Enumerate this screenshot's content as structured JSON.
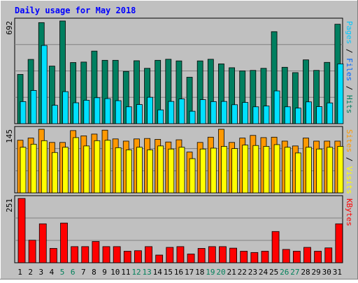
{
  "chart_data": {
    "title": "Daily usage for May 2018",
    "categories": [
      "1",
      "2",
      "3",
      "4",
      "5",
      "6",
      "7",
      "8",
      "9",
      "10",
      "11",
      "12",
      "13",
      "14",
      "15",
      "16",
      "17",
      "18",
      "19",
      "20",
      "21",
      "22",
      "23",
      "24",
      "25",
      "26",
      "27",
      "28",
      "29",
      "30",
      "31"
    ],
    "weekend_days": [
      "5",
      "6",
      "12",
      "13",
      "19",
      "20",
      "26",
      "27"
    ],
    "panels": [
      {
        "id": "hits-files-pages",
        "type": "bar",
        "max_label": "692",
        "ylim": [
          0,
          692
        ],
        "side_label": [
          "Pages",
          " / ",
          "Files",
          " / ",
          "Hits"
        ],
        "series": [
          {
            "key": "hits",
            "color": "#007f60",
            "values": [
              332,
              433,
              681,
              388,
              692,
              412,
              415,
              489,
              427,
              427,
              352,
              424,
              373,
              427,
              434,
              423,
              313,
              423,
              434,
              403,
              377,
              356,
              359,
              373,
              620,
              380,
              344,
              430,
              359,
              413,
              670
            ]
          },
          {
            "key": "pages",
            "color": "#00e0ff",
            "values": [
              149,
              224,
              527,
              124,
              216,
              141,
              158,
              175,
              169,
              155,
              114,
              129,
              178,
              93,
              150,
              167,
              84,
              162,
              149,
              150,
              128,
              143,
              114,
              119,
              221,
              114,
              105,
              147,
              115,
              140,
              403
            ]
          },
          {
            "key": "files",
            "color": "#00c8ff",
            "values": [
              0,
              0,
              0,
              0,
              0,
              0,
              0,
              0,
              0,
              0,
              0,
              0,
              0,
              0,
              0,
              0,
              0,
              0,
              0,
              0,
              0,
              0,
              0,
              0,
              0,
              0,
              0,
              0,
              0,
              0,
              0
            ]
          }
        ]
      },
      {
        "id": "visits-sites",
        "type": "bar",
        "max_label": "145",
        "ylim": [
          0,
          145
        ],
        "side_label": [
          "Sites",
          " / ",
          "Visits"
        ],
        "series": [
          {
            "key": "visits",
            "color": "#ff9900",
            "values": [
              120,
              125,
              145,
              115,
              115,
              142,
              130,
              134,
              143,
              123,
              118,
              123,
              124,
              122,
              116,
              121,
              93,
              115,
              127,
              145,
              115,
              125,
              131,
              126,
              127,
              118,
              107,
              125,
              118,
              118,
              118
            ]
          },
          {
            "key": "sites",
            "color": "#ffff00",
            "values": [
              104,
              111,
              119,
              92,
              104,
              126,
              107,
              119,
              120,
              103,
              98,
              104,
              98,
              107,
              100,
              104,
              78,
              100,
              102,
              106,
              101,
              109,
              108,
              106,
              110,
              104,
              91,
              104,
              100,
              104,
              106
            ]
          }
        ]
      },
      {
        "id": "kbytes",
        "type": "bar",
        "max_label": "251",
        "ylim": [
          0,
          251
        ],
        "side_label": [
          "KBytes"
        ],
        "series": [
          {
            "key": "kbytes",
            "color": "#ff0000",
            "values": [
              251,
              88,
              152,
              56,
              155,
              63,
              63,
              83,
              63,
              63,
              45,
              47,
              63,
              30,
              60,
              63,
              34,
              56,
              63,
              63,
              57,
              45,
              40,
              45,
              122,
              52,
              45,
              60,
              45,
              58,
              152
            ]
          }
        ]
      }
    ]
  }
}
